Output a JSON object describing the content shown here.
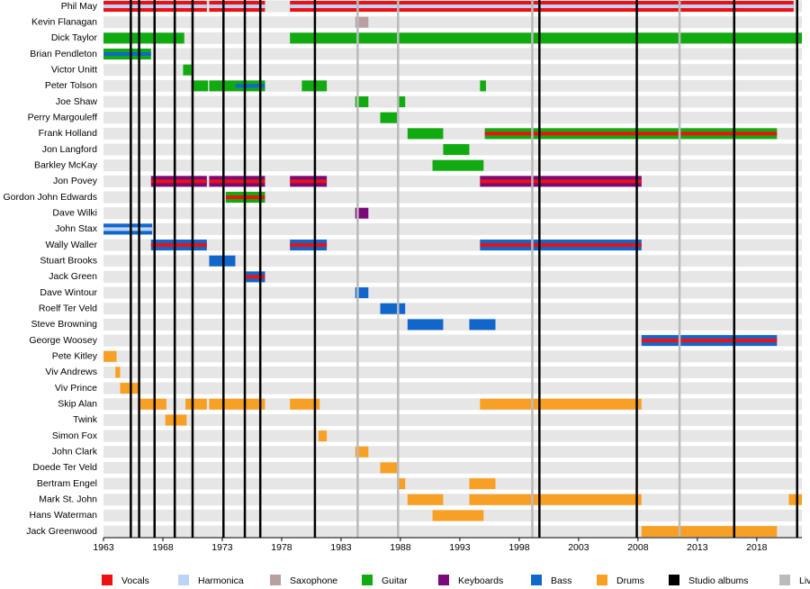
{
  "chart_data": {
    "type": "timeline",
    "xlim": [
      1963,
      2021.8
    ],
    "xticks": [
      1963,
      1968,
      1973,
      1978,
      1983,
      1988,
      1993,
      1998,
      2003,
      2008,
      2013,
      2018
    ],
    "legend": [
      {
        "name": "Vocals",
        "color": "#ee1111"
      },
      {
        "name": "Harmonica",
        "color": "#bbd4f7"
      },
      {
        "name": "Saxophone",
        "color": "#b8a0a0"
      },
      {
        "name": "Guitar",
        "color": "#11aa11"
      },
      {
        "name": "Keyboards",
        "color": "#7a0a7a"
      },
      {
        "name": "Bass",
        "color": "#1166cc"
      },
      {
        "name": "Drums",
        "color": "#f8a024"
      },
      {
        "name": "Studio albums",
        "color": "#000000"
      },
      {
        "name": "Live albums",
        "color": "#bbbbbb"
      }
    ],
    "studio_albums": [
      1965.3,
      1966.0,
      1967.3,
      1969.0,
      1970.5,
      1973.1,
      1974.9,
      1976.2,
      1980.8,
      1999.7,
      2007.9,
      2016.1,
      2021.4
    ],
    "live_albums": [
      1984.4,
      1987.8,
      1999.1,
      2011.5
    ],
    "members": [
      {
        "name": "Phil May",
        "spans": [
          [
            1963,
            1971.7,
            "Vocals",
            "Harmonica"
          ],
          [
            1971.9,
            1976.6,
            "Vocals",
            "Harmonica"
          ],
          [
            1978.7,
            2021.1,
            "Vocals",
            "Harmonica"
          ]
        ]
      },
      {
        "name": "Kevin Flanagan",
        "spans": [
          [
            1984.2,
            1985.3,
            "Saxophone"
          ]
        ]
      },
      {
        "name": "Dick Taylor",
        "spans": [
          [
            1963,
            1969.8,
            "Guitar"
          ],
          [
            1978.7,
            2021.8,
            "Guitar"
          ]
        ]
      },
      {
        "name": "Brian Pendleton",
        "spans": [
          [
            1963,
            1967.0,
            "Guitar",
            "Bass"
          ]
        ]
      },
      {
        "name": "Victor Unitt",
        "spans": [
          [
            1969.7,
            1970.4,
            "Guitar"
          ]
        ]
      },
      {
        "name": "Peter Tolson",
        "spans": [
          [
            1970.4,
            1971.8,
            "Guitar"
          ],
          [
            1971.9,
            1974.1,
            "Guitar"
          ],
          [
            1974.1,
            1976.6,
            "Guitar",
            "Bass"
          ],
          [
            1979.7,
            1981.8,
            "Guitar"
          ],
          [
            1994.7,
            1995.2,
            "Guitar"
          ]
        ]
      },
      {
        "name": "Joe Shaw",
        "spans": [
          [
            1984.2,
            1985.3,
            "Guitar"
          ],
          [
            1987.7,
            1988.4,
            "Guitar"
          ]
        ]
      },
      {
        "name": "Perry Margouleff",
        "spans": [
          [
            1986.3,
            1987.8,
            "Guitar"
          ]
        ]
      },
      {
        "name": "Frank Holland",
        "spans": [
          [
            1988.6,
            1991.6,
            "Guitar"
          ],
          [
            1995.1,
            2019.7,
            "Guitar",
            "Vocals"
          ]
        ]
      },
      {
        "name": "Jon Langford",
        "spans": [
          [
            1991.6,
            1993.8,
            "Guitar"
          ]
        ]
      },
      {
        "name": "Barkley McKay",
        "spans": [
          [
            1990.7,
            1995.0,
            "Guitar"
          ]
        ]
      },
      {
        "name": "Jon Povey",
        "spans": [
          [
            1967.0,
            1971.7,
            "Keyboards",
            "Vocals"
          ],
          [
            1971.9,
            1976.6,
            "Keyboards",
            "Vocals"
          ],
          [
            1978.7,
            1981.8,
            "Keyboards",
            "Vocals"
          ],
          [
            1994.7,
            2008.3,
            "Keyboards",
            "Vocals"
          ]
        ]
      },
      {
        "name": "Gordon John Edwards",
        "spans": [
          [
            1973.3,
            1976.6,
            "Guitar",
            "Vocals"
          ]
        ]
      },
      {
        "name": "Dave Wilki",
        "spans": [
          [
            1984.2,
            1985.3,
            "Keyboards"
          ]
        ]
      },
      {
        "name": "John Stax",
        "spans": [
          [
            1963,
            1967.1,
            "Bass",
            "Harmonica"
          ]
        ]
      },
      {
        "name": "Wally Waller",
        "spans": [
          [
            1967.0,
            1971.7,
            "Bass",
            "Vocals"
          ],
          [
            1978.7,
            1981.8,
            "Bass",
            "Vocals"
          ],
          [
            1994.7,
            2008.3,
            "Bass",
            "Vocals"
          ]
        ]
      },
      {
        "name": "Stuart Brooks",
        "spans": [
          [
            1971.9,
            1974.1,
            "Bass"
          ]
        ]
      },
      {
        "name": "Jack Green",
        "spans": [
          [
            1975.0,
            1976.6,
            "Bass",
            "Vocals"
          ]
        ]
      },
      {
        "name": "Dave Wintour",
        "spans": [
          [
            1984.2,
            1985.3,
            "Bass"
          ]
        ]
      },
      {
        "name": "Roelf Ter Veld",
        "spans": [
          [
            1986.3,
            1988.4,
            "Bass"
          ]
        ]
      },
      {
        "name": "Steve Browning",
        "spans": [
          [
            1988.6,
            1991.6,
            "Bass"
          ],
          [
            1993.8,
            1996.0,
            "Bass"
          ]
        ]
      },
      {
        "name": "George Woosey",
        "spans": [
          [
            2008.3,
            2019.7,
            "Bass",
            "Vocals"
          ]
        ]
      },
      {
        "name": "Pete Kitley",
        "spans": [
          [
            1963,
            1964.1,
            "Drums"
          ]
        ]
      },
      {
        "name": "Viv Andrews",
        "spans": [
          [
            1964.0,
            1964.4,
            "Drums"
          ]
        ]
      },
      {
        "name": "Viv Prince",
        "spans": [
          [
            1964.4,
            1966.0,
            "Drums"
          ]
        ]
      },
      {
        "name": "Skip Alan",
        "spans": [
          [
            1965.9,
            1968.3,
            "Drums"
          ],
          [
            1969.9,
            1971.7,
            "Drums"
          ],
          [
            1971.9,
            1976.6,
            "Drums"
          ],
          [
            1978.7,
            1981.2,
            "Drums"
          ],
          [
            1994.7,
            2008.3,
            "Drums"
          ]
        ]
      },
      {
        "name": "Twink",
        "spans": [
          [
            1968.2,
            1970.0,
            "Drums"
          ]
        ]
      },
      {
        "name": "Simon Fox",
        "spans": [
          [
            1981.1,
            1981.8,
            "Drums"
          ]
        ]
      },
      {
        "name": "John Clark",
        "spans": [
          [
            1984.2,
            1985.3,
            "Drums"
          ]
        ]
      },
      {
        "name": "Doede Ter Veld",
        "spans": [
          [
            1986.3,
            1987.8,
            "Drums"
          ]
        ]
      },
      {
        "name": "Bertram Engel",
        "spans": [
          [
            1987.7,
            1988.4,
            "Drums"
          ],
          [
            1993.8,
            1996.0,
            "Drums"
          ]
        ]
      },
      {
        "name": "Mark St. John",
        "spans": [
          [
            1988.6,
            1991.6,
            "Drums"
          ],
          [
            1993.8,
            2008.3,
            "Drums"
          ],
          [
            2020.7,
            2021.8,
            "Drums"
          ]
        ]
      },
      {
        "name": "Hans Waterman",
        "spans": [
          [
            1990.7,
            1995.0,
            "Drums"
          ]
        ]
      },
      {
        "name": "Jack Greenwood",
        "spans": [
          [
            2008.3,
            2019.7,
            "Drums"
          ]
        ]
      }
    ]
  }
}
